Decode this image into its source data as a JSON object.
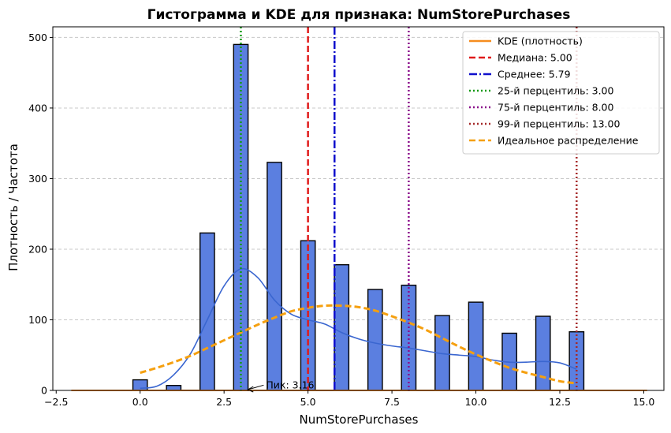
{
  "chart_data": {
    "type": "bar",
    "title": "Гистограмма и KDE для признака: NumStorePurchases",
    "xlabel": "NumStorePurchases",
    "ylabel": "Плотность / Частота",
    "xlim": [
      -2.6,
      15.6
    ],
    "ylim": [
      0,
      515
    ],
    "x_ticks": [
      -2.5,
      0.0,
      2.5,
      5.0,
      7.5,
      10.0,
      12.5,
      15.0
    ],
    "x_tick_labels": [
      "−2.5",
      "0.0",
      "2.5",
      "5.0",
      "7.5",
      "10.0",
      "12.5",
      "15.0"
    ],
    "y_ticks": [
      0,
      100,
      200,
      300,
      400,
      500
    ],
    "y_tick_labels": [
      "0",
      "100",
      "200",
      "300",
      "400",
      "500"
    ],
    "grid": "y-dashed",
    "legend_placement": "top-right",
    "histogram": {
      "color": "#5b7fe0",
      "edge_color": "#000000",
      "bins": [
        {
          "x": 0,
          "count": 15
        },
        {
          "x": 1,
          "count": 7
        },
        {
          "x": 2,
          "count": 223
        },
        {
          "x": 3,
          "count": 490
        },
        {
          "x": 4,
          "count": 323
        },
        {
          "x": 5,
          "count": 212
        },
        {
          "x": 6,
          "count": 178
        },
        {
          "x": 7,
          "count": 143
        },
        {
          "x": 8,
          "count": 149
        },
        {
          "x": 9,
          "count": 106
        },
        {
          "x": 10,
          "count": 125
        },
        {
          "x": 11,
          "count": 81
        },
        {
          "x": 12,
          "count": 105
        },
        {
          "x": 13,
          "count": 83
        }
      ]
    },
    "kde_curve": {
      "color": "#3a66d0",
      "x": [
        0,
        0.5,
        1,
        1.5,
        2,
        2.5,
        3,
        3.5,
        4,
        4.5,
        5,
        5.5,
        6,
        6.5,
        7,
        7.5,
        8,
        8.5,
        9,
        9.5,
        10,
        10.5,
        11,
        11.5,
        12,
        12.5,
        13
      ],
      "y": [
        3,
        6,
        22,
        52,
        100,
        148,
        172,
        160,
        128,
        108,
        100,
        94,
        82,
        73,
        67,
        63,
        60,
        56,
        52,
        50,
        48,
        43,
        40,
        40,
        41,
        39,
        30
      ]
    },
    "series": [
      {
        "name": "KDE (плотность)",
        "color": "#f58c1e",
        "style": "solid",
        "x": [
          -2.05,
          15.1
        ],
        "y": [
          0,
          0
        ]
      },
      {
        "name": "Идеальное распределение",
        "color": "#f5a010",
        "style": "dashed",
        "x": [
          0,
          0.5,
          1,
          1.5,
          2,
          2.5,
          3,
          3.5,
          4,
          4.5,
          5,
          5.5,
          6,
          6.5,
          7,
          7.5,
          8,
          8.5,
          9,
          9.5,
          10,
          10.5,
          11,
          11.5,
          12,
          12.5,
          13
        ],
        "y": [
          25,
          32,
          40,
          49,
          60,
          71,
          82,
          93,
          103,
          112,
          117,
          120,
          120,
          118,
          113,
          105,
          96,
          86,
          74,
          62,
          51,
          41,
          32,
          25,
          19,
          13,
          10
        ]
      }
    ],
    "vlines": [
      {
        "name": "Медиана: 5.00",
        "x": 5.0,
        "color": "#e01b1b",
        "style": "dashed"
      },
      {
        "name": "Среднее: 5.79",
        "x": 5.79,
        "color": "#1010cc",
        "style": "dashdot"
      },
      {
        "name": "25-й перцентиль: 3.00",
        "x": 3.0,
        "color": "#139a13",
        "style": "dotted"
      },
      {
        "name": "75-й перцентиль: 8.00",
        "x": 8.0,
        "color": "#8b0f8b",
        "style": "dotted"
      },
      {
        "name": "99-й перцентиль: 13.00",
        "x": 13.0,
        "color": "#a52a2a",
        "style": "dotted"
      }
    ],
    "legend": [
      {
        "label": "KDE (плотность)",
        "color": "#f58c1e",
        "style": "solid"
      },
      {
        "label": "Медиана: 5.00",
        "color": "#e01b1b",
        "style": "dashed"
      },
      {
        "label": "Среднее: 5.79",
        "color": "#1010cc",
        "style": "dashdot"
      },
      {
        "label": "25-й перцентиль: 3.00",
        "color": "#139a13",
        "style": "dotted"
      },
      {
        "label": "75-й перцентиль: 8.00",
        "color": "#8b0f8b",
        "style": "dotted"
      },
      {
        "label": "99-й перцентиль: 13.00",
        "color": "#a52a2a",
        "style": "dotted"
      },
      {
        "label": "Идеальное распределение",
        "color": "#f5a010",
        "style": "dashed"
      }
    ],
    "annotation": {
      "text": "Пик: 3.16",
      "arrow_x": 3.16,
      "arrow_y": 0,
      "text_x": 3.75,
      "text_y": 3
    }
  }
}
